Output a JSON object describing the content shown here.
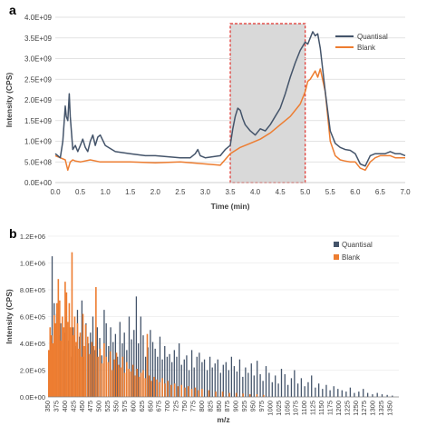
{
  "chart_data": [
    {
      "panel_label": "a",
      "type": "line",
      "xlabel": "Time (min)",
      "ylabel": "Intensity (CPS)",
      "xlim": [
        0.0,
        7.0
      ],
      "ylim": [
        0,
        4000000000
      ],
      "x_ticks": [
        "0.0",
        "0.5",
        "1.0",
        "1.5",
        "2.0",
        "2.5",
        "3.0",
        "3.5",
        "4.0",
        "4.5",
        "5.0",
        "5.5",
        "6.0",
        "6.5",
        "7.0"
      ],
      "y_ticks": [
        "0.0E+00",
        "5.0E+08",
        "1.0E+09",
        "1.5E+09",
        "2.0E+09",
        "2.5E+09",
        "3.0E+09",
        "3.5E+09",
        "4.0E+09"
      ],
      "legend_position": "top-right",
      "highlight_region": {
        "x_start": 3.5,
        "x_end": 5.0
      },
      "colors": {
        "Quantisal": "#44546a",
        "Blank": "#ed7d31",
        "highlight_fill": "#d9d9d9",
        "highlight_border": "#e0302b"
      },
      "series": [
        {
          "name": "Quantisal",
          "x": [
            0.0,
            0.1,
            0.15,
            0.2,
            0.22,
            0.25,
            0.28,
            0.3,
            0.35,
            0.4,
            0.45,
            0.5,
            0.55,
            0.6,
            0.65,
            0.7,
            0.75,
            0.8,
            0.85,
            0.9,
            1.0,
            1.2,
            1.5,
            1.8,
            2.0,
            2.5,
            2.7,
            2.8,
            2.85,
            2.9,
            3.0,
            3.3,
            3.4,
            3.5,
            3.55,
            3.6,
            3.65,
            3.7,
            3.75,
            3.8,
            3.9,
            4.0,
            4.1,
            4.2,
            4.3,
            4.4,
            4.5,
            4.6,
            4.7,
            4.8,
            4.9,
            5.0,
            5.05,
            5.1,
            5.15,
            5.2,
            5.25,
            5.3,
            5.4,
            5.5,
            5.6,
            5.7,
            5.8,
            5.9,
            6.0,
            6.1,
            6.2,
            6.3,
            6.4,
            6.5,
            6.6,
            6.7,
            6.8,
            6.9,
            7.0
          ],
          "y": [
            700000000,
            600000000,
            1000000000,
            1850000000,
            1600000000,
            1500000000,
            2150000000,
            1600000000,
            800000000,
            900000000,
            750000000,
            900000000,
            1050000000,
            850000000,
            750000000,
            1000000000,
            1150000000,
            900000000,
            1100000000,
            1150000000,
            900000000,
            750000000,
            700000000,
            650000000,
            650000000,
            600000000,
            600000000,
            700000000,
            800000000,
            650000000,
            600000000,
            650000000,
            800000000,
            900000000,
            1300000000,
            1600000000,
            1800000000,
            1750000000,
            1550000000,
            1400000000,
            1250000000,
            1150000000,
            1300000000,
            1250000000,
            1400000000,
            1600000000,
            1800000000,
            2150000000,
            2550000000,
            2900000000,
            3200000000,
            3400000000,
            3350000000,
            3500000000,
            3650000000,
            3550000000,
            3600000000,
            3250000000,
            2200000000,
            1250000000,
            950000000,
            850000000,
            800000000,
            780000000,
            700000000,
            450000000,
            400000000,
            650000000,
            700000000,
            700000000,
            700000000,
            750000000,
            700000000,
            700000000,
            650000000
          ]
        },
        {
          "name": "Blank",
          "x": [
            0.0,
            0.1,
            0.2,
            0.25,
            0.3,
            0.35,
            0.4,
            0.5,
            0.7,
            0.9,
            1.2,
            1.5,
            2.0,
            2.5,
            3.0,
            3.3,
            3.5,
            3.7,
            3.9,
            4.1,
            4.3,
            4.5,
            4.7,
            4.9,
            5.0,
            5.05,
            5.1,
            5.15,
            5.2,
            5.25,
            5.3,
            5.4,
            5.5,
            5.6,
            5.7,
            5.8,
            5.9,
            6.0,
            6.1,
            6.2,
            6.3,
            6.4,
            6.5,
            6.6,
            6.7,
            6.8,
            7.0
          ],
          "y": [
            650000000,
            600000000,
            550000000,
            300000000,
            500000000,
            550000000,
            520000000,
            500000000,
            550000000,
            500000000,
            500000000,
            500000000,
            480000000,
            500000000,
            450000000,
            420000000,
            700000000,
            850000000,
            950000000,
            1050000000,
            1200000000,
            1400000000,
            1600000000,
            1900000000,
            2200000000,
            2450000000,
            2500000000,
            2600000000,
            2700000000,
            2550000000,
            2750000000,
            2200000000,
            1000000000,
            650000000,
            550000000,
            520000000,
            500000000,
            500000000,
            350000000,
            300000000,
            500000000,
            600000000,
            650000000,
            650000000,
            650000000,
            600000000,
            600000000
          ]
        }
      ]
    },
    {
      "panel_label": "b",
      "type": "bar",
      "xlabel": "m/z",
      "ylabel": "Intensity (CPS)",
      "xlim": [
        350,
        1375
      ],
      "ylim": [
        0,
        1200000
      ],
      "x_ticks": [
        "350",
        "375",
        "400",
        "425",
        "450",
        "475",
        "500",
        "525",
        "550",
        "575",
        "600",
        "625",
        "650",
        "675",
        "700",
        "725",
        "750",
        "775",
        "800",
        "825",
        "850",
        "875",
        "900",
        "925",
        "950",
        "975",
        "1000",
        "1025",
        "1050",
        "1075",
        "1100",
        "1125",
        "1150",
        "1175",
        "1200",
        "1225",
        "1250",
        "1275",
        "1300",
        "1325",
        "1350"
      ],
      "y_ticks": [
        "0.0E+00",
        "2.0E+05",
        "4.0E+05",
        "6.0E+05",
        "8.0E+05",
        "1.0E+06",
        "1.2E+06"
      ],
      "legend_position": "top-right",
      "colors": {
        "Quantisal": "#44546a",
        "Blank": "#ed7d31"
      },
      "series": [
        {
          "name": "Quantisal",
          "x": [
            355,
            362,
            368,
            375,
            381,
            387,
            393,
            398,
            404,
            410,
            417,
            423,
            430,
            436,
            442,
            449,
            455,
            461,
            468,
            474,
            481,
            488,
            494,
            501,
            507,
            514,
            520,
            527,
            533,
            540,
            547,
            553,
            560,
            567,
            573,
            580,
            587,
            594,
            601,
            608,
            614,
            621,
            628,
            635,
            642,
            649,
            656,
            663,
            670,
            677,
            684,
            691,
            698,
            705,
            712,
            719,
            726,
            733,
            740,
            748,
            755,
            762,
            770,
            777,
            785,
            792,
            800,
            807,
            815,
            823,
            830,
            838,
            846,
            854,
            862,
            870,
            878,
            886,
            894,
            902,
            910,
            919,
            927,
            935,
            944,
            952,
            961,
            970,
            978,
            987,
            996,
            1005,
            1014,
            1023,
            1032,
            1042,
            1051,
            1061,
            1070,
            1080,
            1090,
            1100,
            1110,
            1120,
            1131,
            1141,
            1152,
            1163,
            1174,
            1185,
            1197,
            1209,
            1221,
            1233,
            1245,
            1258,
            1271,
            1284,
            1298,
            1312,
            1326,
            1341,
            1356
          ],
          "y": [
            300000,
            1050000,
            700000,
            620000,
            460000,
            550000,
            350000,
            480000,
            600000,
            420000,
            300000,
            520000,
            380000,
            650000,
            450000,
            720000,
            300000,
            550000,
            400000,
            480000,
            600000,
            350000,
            520000,
            440000,
            310000,
            650000,
            550000,
            380000,
            520000,
            410000,
            470000,
            300000,
            560000,
            400000,
            480000,
            350000,
            600000,
            430000,
            500000,
            750000,
            400000,
            600000,
            460000,
            300000,
            370000,
            500000,
            410000,
            360000,
            300000,
            450000,
            280000,
            380000,
            300000,
            320000,
            260000,
            350000,
            300000,
            400000,
            240000,
            280000,
            310000,
            200000,
            350000,
            220000,
            300000,
            330000,
            260000,
            280000,
            200000,
            300000,
            220000,
            250000,
            280000,
            180000,
            240000,
            260000,
            200000,
            300000,
            230000,
            190000,
            280000,
            150000,
            220000,
            180000,
            250000,
            160000,
            270000,
            170000,
            120000,
            230000,
            180000,
            110000,
            160000,
            100000,
            210000,
            170000,
            90000,
            140000,
            200000,
            100000,
            140000,
            80000,
            110000,
            160000,
            70000,
            100000,
            60000,
            90000,
            50000,
            80000,
            60000,
            50000,
            40000,
            70000,
            30000,
            40000,
            60000,
            30000,
            20000,
            30000,
            20000,
            15000,
            10000
          ]
        },
        {
          "name": "Blank",
          "x": [
            352,
            356,
            360,
            364,
            368,
            372,
            376,
            380,
            384,
            388,
            392,
            396,
            400,
            404,
            408,
            412,
            416,
            420,
            424,
            428,
            432,
            436,
            440,
            444,
            448,
            452,
            456,
            460,
            466,
            472,
            478,
            484,
            490,
            496,
            502,
            508,
            514,
            520,
            526,
            532,
            538,
            544,
            550,
            556,
            562,
            568,
            574,
            580,
            586,
            592,
            598,
            604,
            610,
            616,
            622,
            628,
            634,
            640,
            646,
            652,
            660,
            668,
            676,
            684,
            692,
            700,
            710,
            720,
            730,
            740,
            750,
            760,
            770,
            780,
            790,
            800,
            820,
            840,
            860,
            880,
            900,
            920,
            940,
            960,
            980
          ],
          "y": [
            350000,
            520000,
            460000,
            400000,
            610000,
            550000,
            700000,
            880000,
            720000,
            420000,
            600000,
            520000,
            860000,
            780000,
            560000,
            700000,
            520000,
            1080000,
            460000,
            600000,
            410000,
            550000,
            360000,
            480000,
            300000,
            620000,
            380000,
            540000,
            450000,
            320000,
            410000,
            380000,
            820000,
            300000,
            360000,
            250000,
            400000,
            300000,
            260000,
            340000,
            200000,
            280000,
            330000,
            240000,
            220000,
            300000,
            180000,
            260000,
            210000,
            190000,
            240000,
            160000,
            210000,
            150000,
            180000,
            200000,
            140000,
            470000,
            160000,
            120000,
            150000,
            130000,
            110000,
            140000,
            100000,
            120000,
            90000,
            100000,
            80000,
            90000,
            70000,
            80000,
            60000,
            70000,
            50000,
            60000,
            50000,
            40000,
            40000,
            30000,
            30000,
            25000,
            20000,
            20000,
            15000
          ]
        }
      ]
    }
  ]
}
